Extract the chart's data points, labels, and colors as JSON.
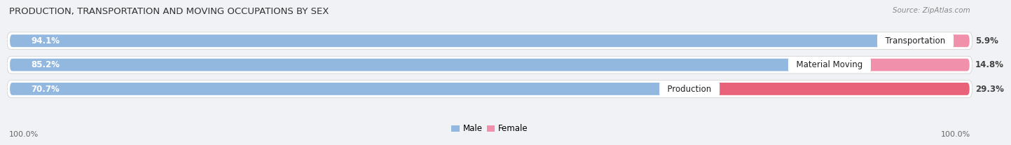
{
  "title": "PRODUCTION, TRANSPORTATION AND MOVING OCCUPATIONS BY SEX",
  "source": "Source: ZipAtlas.com",
  "categories": [
    "Transportation",
    "Material Moving",
    "Production"
  ],
  "male_values": [
    94.1,
    85.2,
    70.7
  ],
  "female_values": [
    5.9,
    14.8,
    29.3
  ],
  "male_color": "#92b8e0",
  "female_color": "#f090aa",
  "production_female_color": "#e8637a",
  "row_bg_color": "#e8edf2",
  "chart_bg_color": "#f0f2f5",
  "title_fontsize": 9.5,
  "source_fontsize": 7.5,
  "label_fontsize": 8.5,
  "axis_label_fontsize": 8,
  "legend_fontsize": 8.5,
  "x_ticks_left": "100.0%",
  "x_ticks_right": "100.0%"
}
